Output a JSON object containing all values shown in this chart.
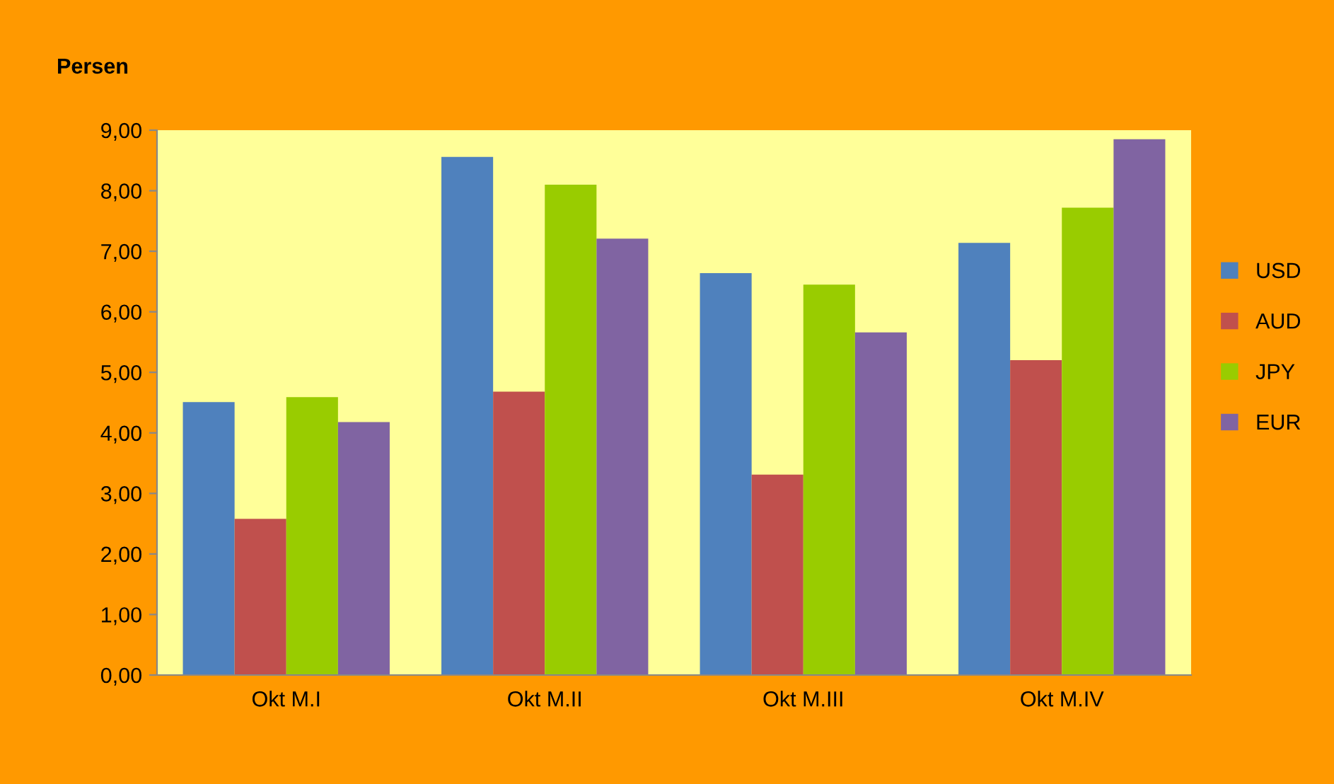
{
  "chart_data": {
    "type": "bar",
    "ylabel": "Persen",
    "categories": [
      "Okt M.I",
      "Okt M.II",
      "Okt M.III",
      "Okt M.IV"
    ],
    "series": [
      {
        "name": "USD",
        "color": "#4f81bd",
        "values": [
          4.51,
          8.56,
          6.64,
          7.14
        ]
      },
      {
        "name": "AUD",
        "color": "#c0504d",
        "values": [
          2.58,
          4.68,
          3.31,
          5.2
        ]
      },
      {
        "name": "JPY",
        "color": "#99cc00",
        "values": [
          4.59,
          8.1,
          6.45,
          7.72
        ]
      },
      {
        "name": "EUR",
        "color": "#8064a2",
        "values": [
          4.18,
          7.21,
          5.66,
          8.85
        ]
      }
    ],
    "ylim": [
      0,
      9
    ],
    "yticks": [
      {
        "value": 0,
        "label": "0,00"
      },
      {
        "value": 1,
        "label": "1,00"
      },
      {
        "value": 2,
        "label": "2,00"
      },
      {
        "value": 3,
        "label": "3,00"
      },
      {
        "value": 4,
        "label": "4,00"
      },
      {
        "value": 5,
        "label": "5,00"
      },
      {
        "value": 6,
        "label": "6,00"
      },
      {
        "value": 7,
        "label": "7,00"
      },
      {
        "value": 8,
        "label": "8,00"
      },
      {
        "value": 9,
        "label": "9,00"
      }
    ],
    "grid": false,
    "legend": "right"
  }
}
